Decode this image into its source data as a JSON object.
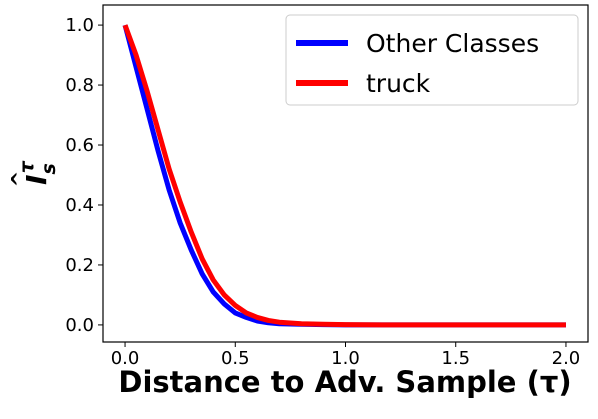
{
  "chart_data": {
    "type": "line",
    "xlabel": "Distance to Adv. Sample (τ)",
    "ylabel": {
      "base": "I",
      "sub": "s",
      "sup": "τ"
    },
    "x": [
      0,
      0.05,
      0.1,
      0.15,
      0.2,
      0.25,
      0.3,
      0.35,
      0.4,
      0.45,
      0.5,
      0.55,
      0.6,
      0.65,
      0.7,
      0.8,
      0.9,
      1.0,
      1.2,
      1.4,
      1.6,
      1.8,
      2.0
    ],
    "series": [
      {
        "name": "Other Classes",
        "color": "#0000ff",
        "values": [
          1.0,
          0.86,
          0.72,
          0.58,
          0.45,
          0.34,
          0.25,
          0.17,
          0.11,
          0.07,
          0.04,
          0.025,
          0.013,
          0.007,
          0.004,
          0.002,
          0.001,
          0,
          0,
          0,
          0,
          0,
          0
        ]
      },
      {
        "name": "truck",
        "color": "#ff0000",
        "values": [
          1.0,
          0.9,
          0.78,
          0.65,
          0.52,
          0.41,
          0.31,
          0.22,
          0.15,
          0.1,
          0.065,
          0.04,
          0.025,
          0.015,
          0.009,
          0.004,
          0.002,
          0.001,
          0,
          0,
          0,
          0,
          0
        ]
      }
    ],
    "xlim": [
      -0.1,
      2.1
    ],
    "ylim": [
      -0.057,
      1.067
    ],
    "xticks": [
      {
        "value": 0,
        "label": "0.0"
      },
      0.5,
      {
        "value": 1,
        "label": "1.0"
      },
      1.5,
      {
        "value": 2,
        "label": "2.0"
      }
    ],
    "yticks": [
      {
        "value": 0,
        "label": "0.0"
      },
      0.2,
      0.4,
      0.6,
      0.8,
      {
        "value": 1,
        "label": "1.0"
      }
    ],
    "legend": "upper right"
  }
}
